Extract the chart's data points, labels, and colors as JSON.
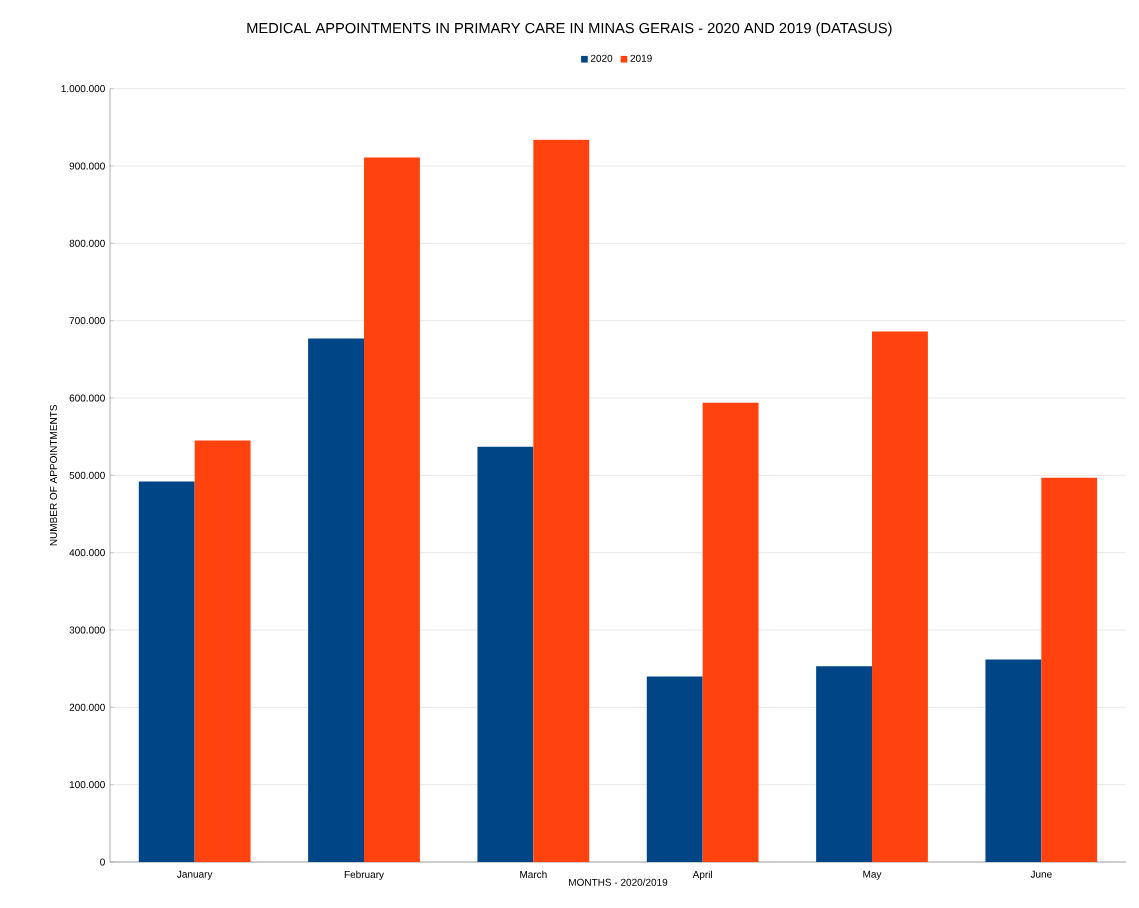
{
  "chart_data": {
    "type": "bar",
    "title": "MEDICAL APPOINTMENTS  IN PRIMARY CARE IN MINAS GERAIS - 2020 AND 2019 (DATASUS)",
    "xlabel": "MONTHS - 2020/2019",
    "ylabel": "NUMBER OF APPOINTMENTS",
    "categories": [
      "January",
      "February",
      "March",
      "April",
      "May",
      "June"
    ],
    "series": [
      {
        "name": "2020",
        "color": "#004586",
        "values": [
          492000,
          677000,
          537000,
          240000,
          253000,
          262000
        ]
      },
      {
        "name": "2019",
        "color": "#ff420e",
        "values": [
          545000,
          911000,
          934000,
          594000,
          686000,
          497000
        ]
      }
    ],
    "ylim": [
      0,
      1000000
    ],
    "yticks": [
      0,
      {
        "value": 100000,
        "label": "100.000"
      },
      {
        "value": 200000,
        "label": "200.000"
      },
      {
        "value": 300000,
        "label": "300.000"
      },
      {
        "value": 400000,
        "label": "400.000"
      },
      {
        "value": 500000,
        "label": "500.000"
      },
      {
        "value": 600000,
        "label": "600.000"
      },
      {
        "value": 700000,
        "label": "700.000"
      },
      {
        "value": 800000,
        "label": "800.000"
      },
      {
        "value": 900000,
        "label": "900.000"
      },
      {
        "value": 1000000,
        "label": "1.000.000"
      }
    ],
    "grid": "y",
    "legend": "top"
  }
}
